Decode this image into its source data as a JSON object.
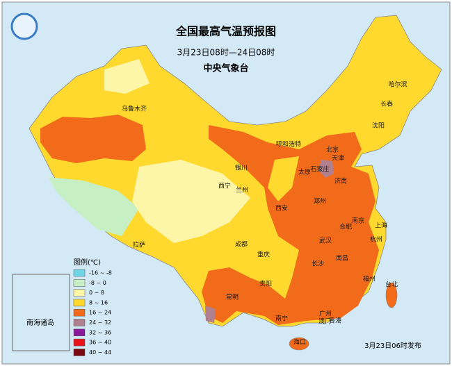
{
  "header": {
    "title": "全国最高气温预报图",
    "subtitle": "3月23日08时—24日08时",
    "agency": "中央气象台"
  },
  "legend": {
    "title": "图例(℃)",
    "entries": [
      {
        "label": "-16 ~ -8",
        "color": "#6fd6e8"
      },
      {
        "label": "-8 ~ 0",
        "color": "#c6efc4"
      },
      {
        "label": "0 ~ 8",
        "color": "#fdf6a8"
      },
      {
        "label": "8 ~ 16",
        "color": "#ffd92e"
      },
      {
        "label": "16 ~ 24",
        "color": "#f26b1a"
      },
      {
        "label": "24 ~ 32",
        "color": "#b0808e"
      },
      {
        "label": "32 ~ 36",
        "color": "#8a1a9a"
      },
      {
        "label": "36 ~ 40",
        "color": "#e8141c"
      },
      {
        "label": "40 ~ 44",
        "color": "#7a0a12"
      }
    ]
  },
  "cities": [
    "乌鲁木齐",
    "拉萨",
    "西宁",
    "兰州",
    "银川",
    "呼和浩特",
    "北京",
    "天津",
    "石家庄",
    "太原",
    "济南",
    "郑州",
    "西安",
    "合肥",
    "南京",
    "上海",
    "杭州",
    "武汉",
    "成都",
    "重庆",
    "长沙",
    "南昌",
    "福州",
    "贵阳",
    "昆明",
    "南宁",
    "广州",
    "香港",
    "澳门",
    "海口",
    "台北",
    "哈尔滨",
    "长春",
    "沈阳"
  ],
  "inset_label": "南海诸岛",
  "footer": "3月23日06时发布"
}
